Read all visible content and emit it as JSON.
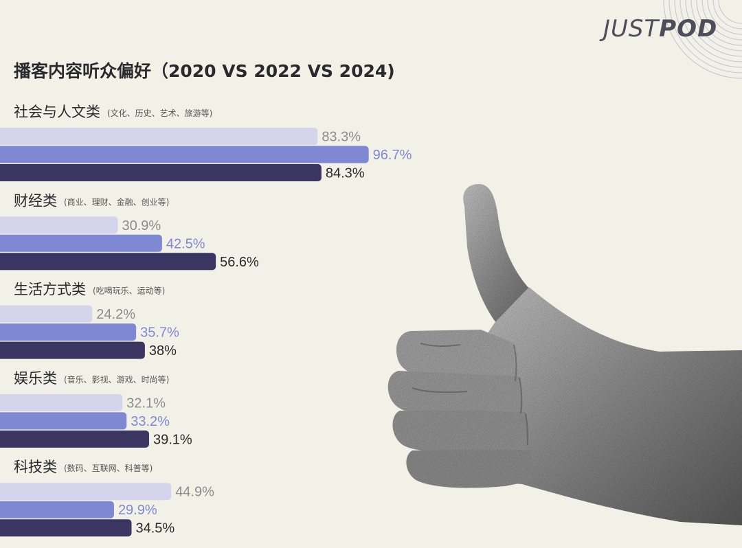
{
  "brand": {
    "logo_text_light": "JUST",
    "logo_text_bold": "POD"
  },
  "colors": {
    "background": "#f2f1e7",
    "series_2020": "#d4d5ec",
    "series_2022": "#7f88d3",
    "series_2024": "#3b3561",
    "label_2020": "#8c8c8c",
    "label_2022": "#7f88d3",
    "label_2024": "#2a2a2e"
  },
  "chart_data": {
    "type": "bar",
    "orientation": "horizontal",
    "title": "播客内容听众偏好（2020 VS 2022 VS 2024)",
    "categories": [
      {
        "name": "社会与人文类",
        "sub": "(文化、历史、艺术、旅游等)"
      },
      {
        "name": "财经类",
        "sub": "(商业、理财、金融、创业等)"
      },
      {
        "name": "生活方式类",
        "sub": "(吃喝玩乐、运动等)"
      },
      {
        "name": "娱乐类",
        "sub": "(音乐、影视、游戏、时尚等)"
      },
      {
        "name": "科技类",
        "sub": "(数码、互联网、科普等)"
      }
    ],
    "series": [
      {
        "values": [
          83.3,
          30.9,
          24.2,
          32.1,
          44.9
        ],
        "labels": [
          "83.3%",
          "30.9%",
          "24.2%",
          "32.1%",
          "44.9%"
        ]
      },
      {
        "values": [
          96.7,
          42.5,
          35.7,
          33.2,
          29.9
        ],
        "labels": [
          "96.7%",
          "42.5%",
          "35.7%",
          "33.2%",
          "29.9%"
        ]
      },
      {
        "values": [
          84.3,
          56.6,
          38,
          39.1,
          34.5
        ],
        "labels": [
          "84.3%",
          "56.6%",
          "38%",
          "39.1%",
          "34.5%"
        ]
      }
    ],
    "xlim": [
      0,
      100
    ],
    "grid": false,
    "legend": "none"
  }
}
